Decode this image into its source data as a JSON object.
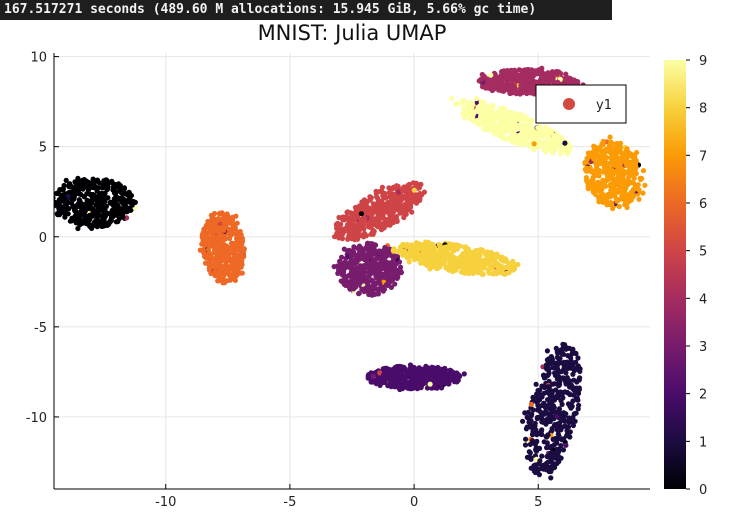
{
  "timing_text": "167.517271 seconds (489.60 M allocations: 15.945 GiB, 5.66% gc time)",
  "chart_data": {
    "type": "scatter",
    "title": "MNIST: Julia UMAP",
    "xlabel": "",
    "ylabel": "",
    "xlim": [
      -14.5,
      9.5
    ],
    "ylim": [
      -14,
      10.2
    ],
    "x_ticks": [
      -10,
      -5,
      0,
      5
    ],
    "y_ticks": [
      10,
      5,
      0,
      -5,
      -10
    ],
    "x_tick_labels": [
      "-10",
      "-5",
      "0",
      "5"
    ],
    "y_tick_labels": [
      "10",
      "5",
      "0",
      "-5",
      "-10"
    ],
    "grid": true,
    "legend": {
      "position": "top-right",
      "entries": [
        {
          "label": "y1",
          "color": "#d44842"
        }
      ]
    },
    "colorbar": {
      "min": 0,
      "max": 9,
      "ticks": [
        0,
        1,
        2,
        3,
        4,
        5,
        6,
        7,
        8,
        9
      ],
      "colormap": "inferno"
    },
    "clusters": [
      {
        "label": 0,
        "center": [
          -12.9,
          1.9
        ],
        "radius": [
          1.7,
          1.35
        ],
        "angle": 0
      },
      {
        "label": 1,
        "center": [
          5.6,
          -9.6
        ],
        "radius": [
          1.0,
          3.7
        ],
        "angle": -8
      },
      {
        "label": 2,
        "center": [
          0.0,
          -7.8
        ],
        "radius": [
          1.9,
          0.65
        ],
        "angle": 0
      },
      {
        "label": 3,
        "center": [
          -1.8,
          -1.8
        ],
        "radius": [
          1.3,
          1.45
        ],
        "angle": 0
      },
      {
        "label": 4,
        "center": [
          4.6,
          8.6
        ],
        "radius": [
          2.0,
          0.7
        ],
        "angle": 0
      },
      {
        "label": 5,
        "center": [
          -1.4,
          1.4
        ],
        "radius": [
          2.3,
          0.9
        ],
        "angle": 40
      },
      {
        "label": 6,
        "center": [
          -7.7,
          -0.6
        ],
        "radius": [
          0.85,
          2.0
        ],
        "angle": 4
      },
      {
        "label": 7,
        "center": [
          8.0,
          3.5
        ],
        "radius": [
          1.15,
          1.85
        ],
        "angle": 8
      },
      {
        "label": 8,
        "center": [
          1.7,
          -1.2
        ],
        "radius": [
          2.6,
          0.75
        ],
        "angle": -12
      },
      {
        "label": 9,
        "center": [
          4.0,
          6.1
        ],
        "radius": [
          2.7,
          0.75
        ],
        "angle": -31
      }
    ]
  }
}
